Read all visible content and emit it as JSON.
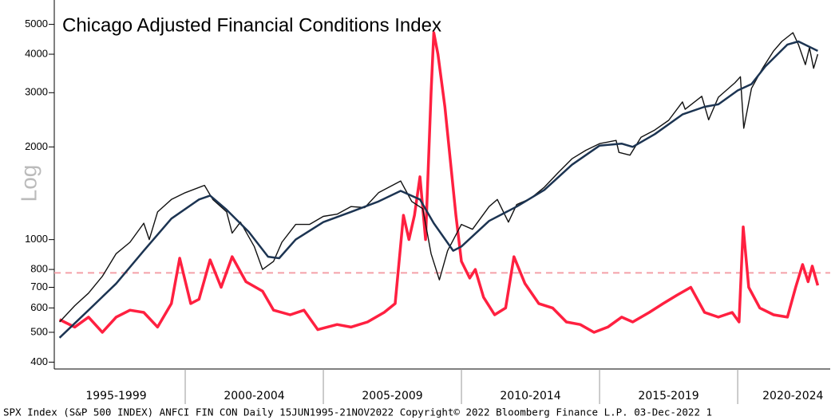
{
  "chart_data": {
    "type": "line",
    "title": "Chicago Adjusted Financial Conditions Index",
    "y_label": "Log",
    "footer": "SPX Index (S&P 500 INDEX) ANFCI FIN CON  Daily 15JUN1995-21NOV2022  Copyright© 2022 Bloomberg Finance L.P.  03-Dec-2022 1",
    "log_scale": true,
    "ylim": [
      380,
      6000
    ],
    "yticks": [
      400,
      500,
      600,
      700,
      800,
      1000,
      2000,
      3000,
      4000,
      5000
    ],
    "xlim": [
      1995.26,
      2023.35
    ],
    "xticks": [
      {
        "value": 1997.5,
        "label": "1995-1999"
      },
      {
        "value": 2002.5,
        "label": "2000-2004"
      },
      {
        "value": 2007.5,
        "label": "2005-2009"
      },
      {
        "value": 2012.5,
        "label": "2010-2014"
      },
      {
        "value": 2017.5,
        "label": "2015-2019"
      },
      {
        "value": 2022,
        "label": "2020-2024"
      }
    ],
    "xseparators": [
      2000,
      2005,
      2010,
      2015,
      2020
    ],
    "reference_line": {
      "value": 780,
      "color": "#f4a0a8"
    },
    "series": [
      {
        "color": "#ff2040",
        "width": 3.5,
        "x": [
          1995.45,
          1996,
          1996.5,
          1997,
          1997.5,
          1998,
          1998.5,
          1999,
          1999.5,
          1999.8,
          2000.2,
          2000.5,
          2000.9,
          2001.3,
          2001.7,
          2002.2,
          2002.8,
          2003.2,
          2003.8,
          2004.3,
          2004.8,
          2005.5,
          2006,
          2006.6,
          2007.2,
          2007.6,
          2007.9,
          2008.1,
          2008.3,
          2008.5,
          2008.7,
          2008.9,
          2009.0,
          2009.15,
          2009.4,
          2009.6,
          2009.8,
          2010.0,
          2010.3,
          2010.5,
          2010.8,
          2011.2,
          2011.6,
          2011.9,
          2012.3,
          2012.8,
          2013.3,
          2013.8,
          2014.3,
          2014.8,
          2015.3,
          2015.8,
          2016.2,
          2016.8,
          2017.3,
          2017.8,
          2018.3,
          2018.8,
          2019.3,
          2019.8,
          2020.05,
          2020.2,
          2020.4,
          2020.8,
          2021.3,
          2021.8,
          2022.1,
          2022.35,
          2022.55,
          2022.7,
          2022.9
        ],
        "values": [
          550,
          520,
          560,
          500,
          560,
          590,
          580,
          520,
          620,
          870,
          620,
          640,
          860,
          700,
          880,
          730,
          680,
          590,
          570,
          590,
          510,
          530,
          520,
          540,
          580,
          620,
          1200,
          1000,
          1200,
          1600,
          1000,
          3000,
          4700,
          4000,
          2700,
          1800,
          1200,
          850,
          750,
          800,
          650,
          570,
          600,
          880,
          720,
          620,
          600,
          540,
          530,
          500,
          520,
          560,
          540,
          580,
          620,
          660,
          700,
          580,
          560,
          580,
          540,
          1100,
          700,
          600,
          570,
          560,
          700,
          830,
          730,
          820,
          710
        ]
      },
      {
        "color": "#111111",
        "width": 1.4,
        "x": [
          1995.45,
          1996,
          1996.5,
          1997,
          1997.5,
          1998,
          1998.5,
          1998.7,
          1999,
          1999.5,
          2000,
          2000.7,
          2001,
          2001.5,
          2001.7,
          2002,
          2002.5,
          2002.8,
          2003.2,
          2003.5,
          2004,
          2004.5,
          2005,
          2005.5,
          2006,
          2006.5,
          2007,
          2007.8,
          2008.2,
          2008.6,
          2008.9,
          2009.2,
          2009.5,
          2010,
          2010.4,
          2011,
          2011.3,
          2011.7,
          2012,
          2012.5,
          2013,
          2013.5,
          2014,
          2014.5,
          2015,
          2015.6,
          2015.7,
          2016.1,
          2016.5,
          2017,
          2017.5,
          2018,
          2018.1,
          2018.7,
          2018.95,
          2019.3,
          2019.9,
          2020.1,
          2020.22,
          2020.5,
          2020.9,
          2021.3,
          2021.6,
          2022,
          2022.2,
          2022.45,
          2022.6,
          2022.75,
          2022.9
        ],
        "values": [
          540,
          610,
          670,
          760,
          900,
          980,
          1130,
          1000,
          1230,
          1350,
          1420,
          1500,
          1350,
          1230,
          1050,
          1140,
          950,
          800,
          850,
          980,
          1120,
          1120,
          1190,
          1210,
          1280,
          1270,
          1420,
          1550,
          1330,
          1260,
          900,
          740,
          920,
          1120,
          1080,
          1280,
          1350,
          1140,
          1300,
          1360,
          1480,
          1650,
          1830,
          1950,
          2050,
          2100,
          1920,
          1880,
          2150,
          2270,
          2440,
          2800,
          2650,
          2920,
          2450,
          2900,
          3230,
          3380,
          2300,
          3100,
          3600,
          4100,
          4400,
          4700,
          4300,
          3700,
          4200,
          3600,
          4000
        ]
      },
      {
        "color": "#1c3452",
        "width": 2.5,
        "x": [
          1995.45,
          1996.5,
          1997.5,
          1998.5,
          1999.5,
          2000.5,
          2000.9,
          2001.5,
          2002.3,
          2003,
          2003.4,
          2004,
          2005,
          2006,
          2007,
          2007.8,
          2008.5,
          2009,
          2009.7,
          2010,
          2011,
          2012,
          2013,
          2014,
          2015,
          2015.8,
          2016.2,
          2017,
          2018,
          2018.8,
          2019.3,
          2020,
          2020.5,
          2021,
          2021.8,
          2022.2,
          2022.9
        ],
        "values": [
          480,
          590,
          720,
          920,
          1170,
          1350,
          1390,
          1250,
          1060,
          880,
          870,
          1000,
          1140,
          1230,
          1330,
          1440,
          1350,
          1130,
          920,
          950,
          1150,
          1280,
          1450,
          1750,
          2020,
          2050,
          2000,
          2200,
          2550,
          2700,
          2750,
          3050,
          3200,
          3650,
          4300,
          4400,
          4100
        ]
      }
    ]
  }
}
